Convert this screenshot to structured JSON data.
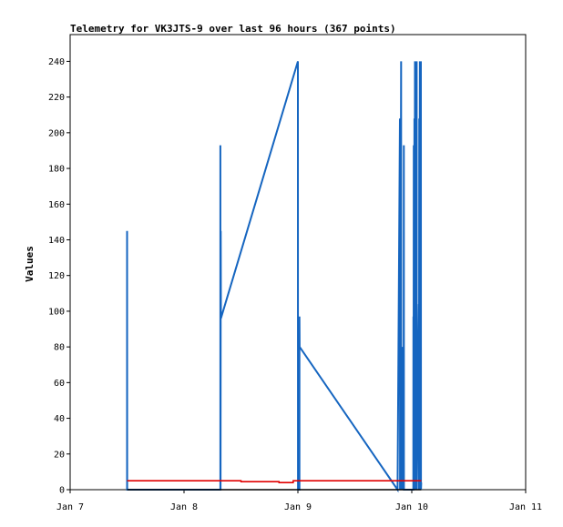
{
  "chart_data": {
    "type": "line",
    "title": "Telemetry for VK3JTS-9 over last 96 hours (367 points)",
    "xlabel": "",
    "ylabel": "Values",
    "x_ticks": [
      "Jan 7",
      "Jan 8",
      "Jan 9",
      "Jan 10",
      "Jan 11"
    ],
    "xlim": [
      "2024-01-07T00:00",
      "2024-01-11T00:00"
    ],
    "ylim": [
      0,
      255
    ],
    "y_ticks": [
      0,
      20,
      40,
      60,
      80,
      100,
      120,
      140,
      160,
      180,
      200,
      220,
      240
    ],
    "grid": false,
    "series": [
      {
        "color": "#1565c0",
        "points": [
          [
            "2024-01-07T12:00",
            0
          ],
          [
            "2024-01-07T12:00",
            145
          ],
          [
            "2024-01-07T12:01",
            0
          ],
          [
            "2024-01-08T07:40",
            0
          ],
          [
            "2024-01-08T07:40",
            193
          ],
          [
            "2024-01-08T07:42",
            0
          ],
          [
            "2024-01-08T07:44",
            145
          ],
          [
            "2024-01-08T07:46",
            96
          ],
          [
            "2024-01-09T00:00",
            240
          ],
          [
            "2024-01-09T00:01",
            0
          ],
          [
            "2024-01-09T00:02",
            8
          ],
          [
            "2024-01-09T00:03",
            0
          ],
          [
            "2024-01-09T00:20",
            0
          ],
          [
            "2024-01-09T00:20",
            97
          ],
          [
            "2024-01-09T00:22",
            80
          ],
          [
            "2024-01-09T21:00",
            0
          ],
          [
            "2024-01-09T21:30",
            208
          ],
          [
            "2024-01-09T21:31",
            0
          ],
          [
            "2024-01-09T21:33",
            208
          ],
          [
            "2024-01-09T21:34",
            0
          ],
          [
            "2024-01-09T21:45",
            240
          ],
          [
            "2024-01-09T21:46",
            0
          ],
          [
            "2024-01-09T21:58",
            80
          ],
          [
            "2024-01-09T21:59",
            0
          ],
          [
            "2024-01-09T22:05",
            20
          ],
          [
            "2024-01-09T22:06",
            0
          ],
          [
            "2024-01-09T22:15",
            28
          ],
          [
            "2024-01-09T22:16",
            0
          ],
          [
            "2024-01-09T22:20",
            193
          ],
          [
            "2024-01-09T22:21",
            0
          ],
          [
            "2024-01-09T22:26",
            0
          ],
          [
            "2024-01-10T00:20",
            0
          ],
          [
            "2024-01-10T00:21",
            97
          ],
          [
            "2024-01-10T00:22",
            0
          ],
          [
            "2024-01-10T00:25",
            193
          ],
          [
            "2024-01-10T00:26",
            0
          ],
          [
            "2024-01-10T00:33",
            208
          ],
          [
            "2024-01-10T00:34",
            0
          ],
          [
            "2024-01-10T00:40",
            240
          ],
          [
            "2024-01-10T00:41",
            0
          ],
          [
            "2024-01-10T00:47",
            145
          ],
          [
            "2024-01-10T00:48",
            0
          ],
          [
            "2024-01-10T00:55",
            128
          ],
          [
            "2024-01-10T00:56",
            0
          ],
          [
            "2024-01-10T01:02",
            240
          ],
          [
            "2024-01-10T01:03",
            0
          ],
          [
            "2024-01-10T01:30",
            104
          ],
          [
            "2024-01-10T01:31",
            0
          ],
          [
            "2024-01-10T01:35",
            208
          ],
          [
            "2024-01-10T01:36",
            0
          ],
          [
            "2024-01-10T01:42",
            240
          ],
          [
            "2024-01-10T01:43",
            0
          ],
          [
            "2024-01-10T01:55",
            240
          ],
          [
            "2024-01-10T01:56",
            0
          ],
          [
            "2024-01-10T02:00",
            4
          ]
        ]
      },
      {
        "color": "#e00000",
        "points": [
          [
            "2024-01-07T12:00",
            5
          ],
          [
            "2024-01-08T12:00",
            5
          ],
          [
            "2024-01-08T12:01",
            4.5
          ],
          [
            "2024-01-08T20:00",
            4.5
          ],
          [
            "2024-01-08T20:01",
            4
          ],
          [
            "2024-01-08T23:00",
            4
          ],
          [
            "2024-01-08T23:01",
            5
          ],
          [
            "2024-01-10T00:00",
            5
          ],
          [
            "2024-01-10T02:00",
            5
          ]
        ]
      },
      {
        "color": "#000000",
        "points": [
          [
            "2024-01-07T12:00",
            0
          ],
          [
            "2024-01-10T02:00",
            0
          ]
        ]
      }
    ]
  }
}
